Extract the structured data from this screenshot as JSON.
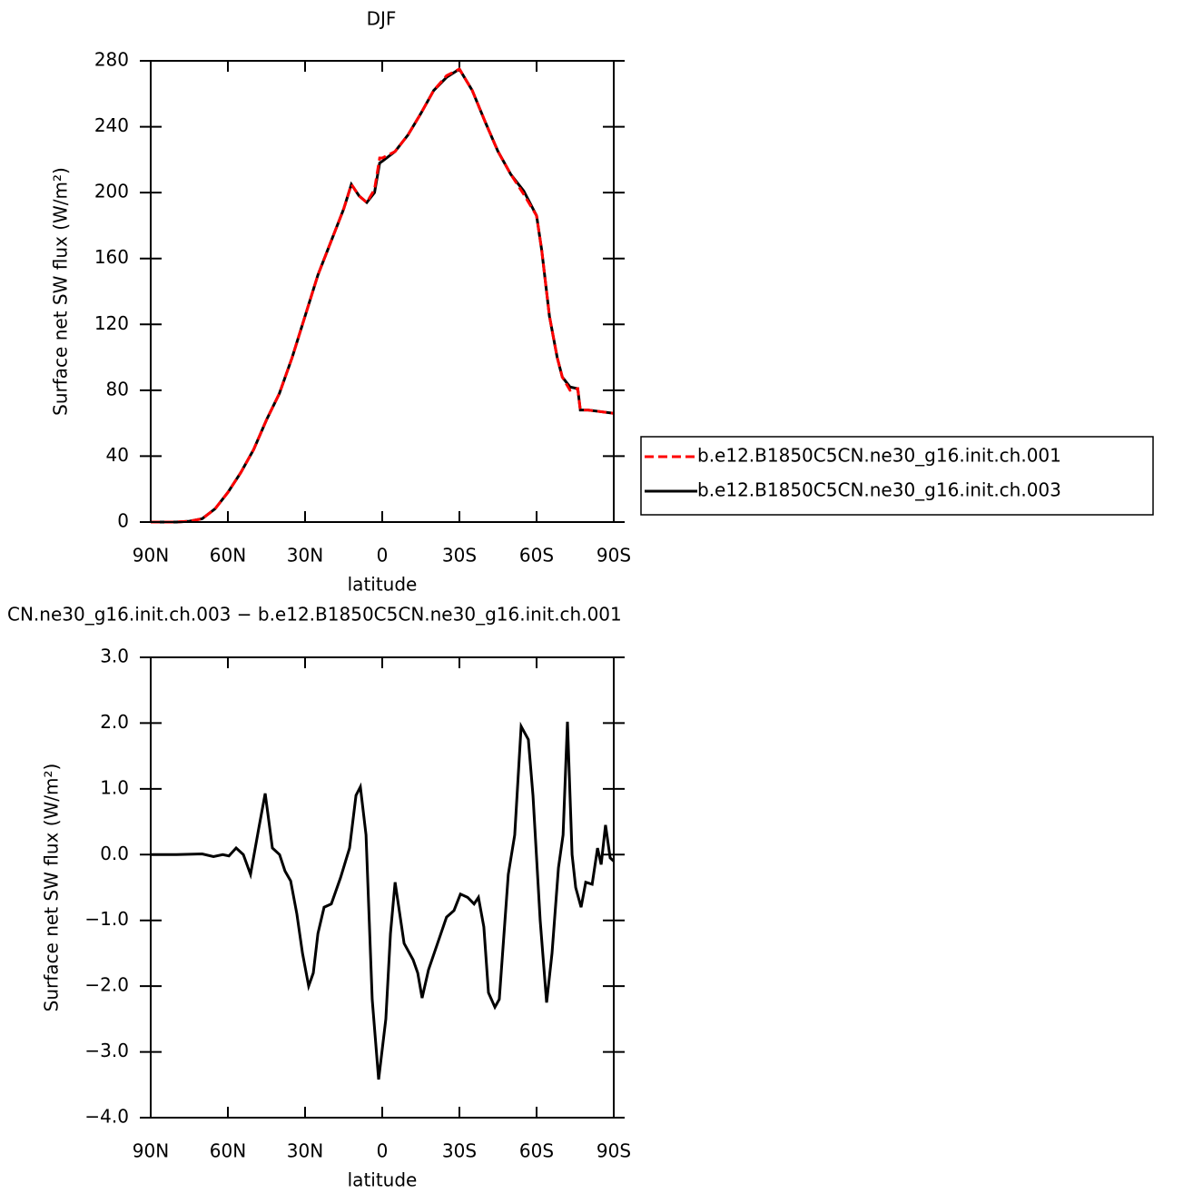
{
  "chart_data": [
    {
      "type": "line",
      "title": "DJF",
      "xlabel": "latitude",
      "ylabel": "Surface net SW flux (W/m²)",
      "x": [
        90,
        85,
        80,
        75,
        70,
        65,
        60,
        55,
        50,
        45,
        40,
        35,
        30,
        25,
        20,
        15,
        12,
        9,
        6,
        3,
        1,
        0,
        -5,
        -10,
        -15,
        -20,
        -25,
        -30,
        -35,
        -40,
        -45,
        -50,
        -55,
        -60,
        -62,
        -65,
        -68,
        -70,
        -73,
        -76,
        -77,
        -80,
        -85,
        -90
      ],
      "series": [
        {
          "name": "b.e12.B1850C5CN.ne30_g16.init.ch.001",
          "color": "#ff0000",
          "dash": true,
          "values": [
            0,
            0,
            0,
            0.5,
            2,
            8,
            18,
            30,
            44,
            62,
            78,
            100,
            125,
            150,
            170,
            190,
            205,
            198,
            194,
            202,
            221,
            221,
            225,
            235,
            248,
            262,
            271,
            275,
            262,
            243,
            225,
            211,
            199,
            186,
            165,
            125,
            100,
            88,
            80,
            81,
            68,
            68,
            67,
            66
          ]
        },
        {
          "name": "b.e12.B1850C5CN.ne30_g16.init.ch.003",
          "color": "#000000",
          "dash": false,
          "values": [
            0,
            0,
            0,
            0.5,
            2,
            8,
            18,
            30,
            44,
            62,
            78,
            100,
            125,
            150,
            170,
            190,
            205,
            198,
            194,
            200,
            218,
            219,
            225,
            235,
            248,
            262,
            270,
            275,
            262,
            243,
            225,
            211,
            201,
            186,
            165,
            125,
            100,
            88,
            82,
            81,
            68,
            68,
            67,
            66
          ]
        }
      ],
      "xlim": [
        90,
        -90
      ],
      "xticks": [
        {
          "value": 90,
          "label": "90N"
        },
        {
          "value": 60,
          "label": "60N"
        },
        {
          "value": 30,
          "label": "30N"
        },
        0,
        {
          "value": -30,
          "label": "30S"
        },
        {
          "value": -60,
          "label": "60S"
        },
        {
          "value": -90,
          "label": "90S"
        }
      ],
      "ylim": [
        0,
        280
      ],
      "yticks": [
        0,
        40,
        80,
        120,
        160,
        200,
        240,
        280
      ],
      "legend": "right"
    },
    {
      "type": "line",
      "title": "CN.ne30_g16.init.ch.003 − b.e12.B1850C5CN.ne30_g16.init.ch.001",
      "xlabel": "latitude",
      "ylabel": "Surface net SW flux (W/m²)",
      "x": [
        90,
        80,
        70,
        65.6,
        62,
        59.6,
        56.8,
        54,
        51.2,
        48,
        45.5,
        42.7,
        39.9,
        37.8,
        35.6,
        33.2,
        31,
        28.6,
        26.8,
        25,
        22.6,
        19.8,
        16.2,
        12.7,
        10.2,
        8.5,
        6.3,
        3.9,
        1.4,
        -1.4,
        -3.2,
        -5,
        -8.5,
        -12,
        -13.8,
        -15.5,
        -18,
        -21.5,
        -25,
        -27.9,
        -30.4,
        -33.2,
        -35.7,
        -37.4,
        -39.5,
        -41.3,
        -43.8,
        -45.5,
        -49,
        -51.5,
        -54,
        -56.8,
        -58.6,
        -61.4,
        -63.9,
        -66,
        -68.5,
        -70.3,
        -72,
        -73.8,
        -75.2,
        -77.3,
        -79.1,
        -81.6,
        -83.7,
        -85.1,
        -86.8,
        -88.6,
        -90
      ],
      "values": [
        0,
        0,
        0.01,
        -0.03,
        0,
        -0.02,
        0.1,
        0,
        -0.3,
        0.4,
        0.93,
        0.1,
        0,
        -0.25,
        -0.4,
        -0.9,
        -1.5,
        -2.0,
        -1.8,
        -1.2,
        -0.8,
        -0.75,
        -0.35,
        0.1,
        0.9,
        1.03,
        0.3,
        -2.2,
        -3.42,
        -2.5,
        -1.2,
        -0.42,
        -1.35,
        -1.6,
        -1.8,
        -2.18,
        -1.75,
        -1.35,
        -0.95,
        -0.85,
        -0.6,
        -0.65,
        -0.75,
        -0.65,
        -1.1,
        -2.1,
        -2.32,
        -2.2,
        -0.3,
        0.3,
        1.95,
        1.75,
        0.9,
        -1.0,
        -2.25,
        -1.5,
        -0.2,
        0.3,
        2.02,
        0,
        -0.5,
        -0.8,
        -0.42,
        -0.45,
        0.1,
        -0.15,
        0.45,
        -0.05,
        -0.1
      ],
      "color": "#000000",
      "xlim": [
        90,
        -90
      ],
      "xticks": [
        {
          "value": 90,
          "label": "90N"
        },
        {
          "value": 60,
          "label": "60N"
        },
        {
          "value": 30,
          "label": "30N"
        },
        0,
        {
          "value": -30,
          "label": "30S"
        },
        {
          "value": -60,
          "label": "60S"
        },
        {
          "value": -90,
          "label": "90S"
        }
      ],
      "ylim": [
        -4,
        3
      ],
      "yticks": [
        {
          "value": 3,
          "label": "3.0"
        },
        {
          "value": 2,
          "label": "2.0"
        },
        {
          "value": 1,
          "label": "1.0"
        },
        {
          "value": 0,
          "label": "0.0"
        },
        {
          "value": -1,
          "label": "−1.0"
        },
        {
          "value": -2,
          "label": "−2.0"
        },
        {
          "value": -3,
          "label": "−3.0"
        },
        {
          "value": -4,
          "label": "−4.0"
        }
      ]
    }
  ]
}
